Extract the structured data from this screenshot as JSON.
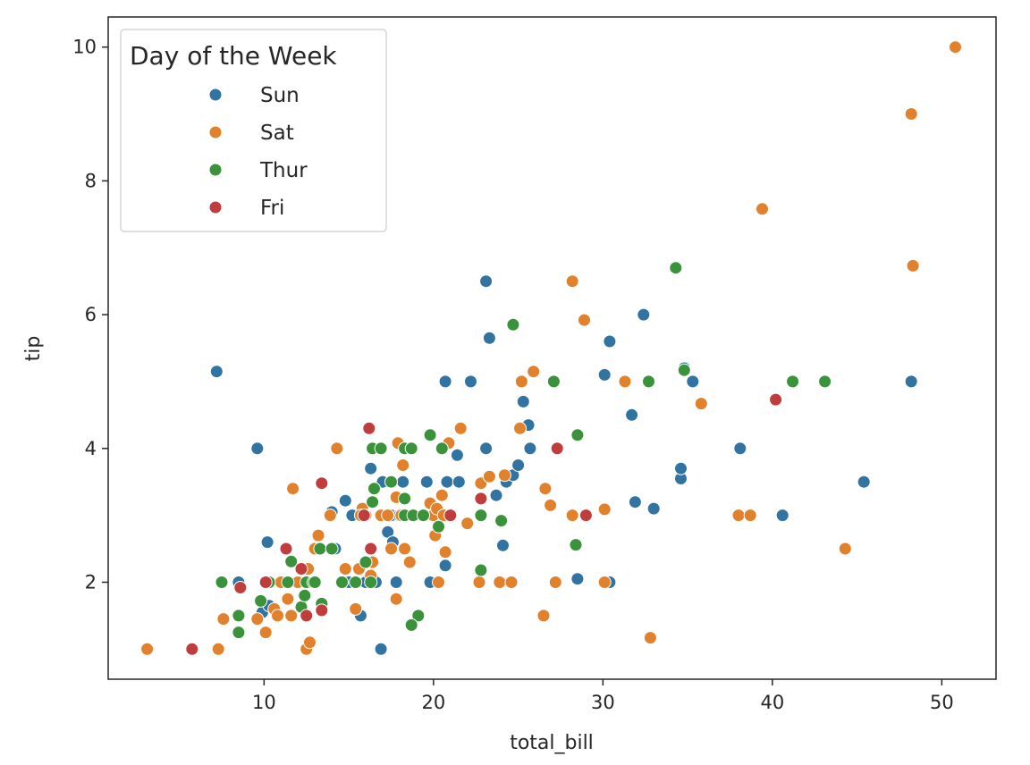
{
  "chart_data": {
    "type": "scatter",
    "title": "",
    "xlabel": "total_bill",
    "ylabel": "tip",
    "xlim": [
      0.8,
      53.2
    ],
    "ylim": [
      0.55,
      10.45
    ],
    "xticks": [
      10,
      20,
      30,
      40,
      50
    ],
    "yticks": [
      2,
      4,
      6,
      8,
      10
    ],
    "grid": false,
    "legend": {
      "title": "Day of the Week",
      "placement": "top-left"
    },
    "series": [
      {
        "name": "Sun",
        "color": "#3274a1",
        "points": [
          [
            7.2,
            5.15
          ],
          [
            9.6,
            4.0
          ],
          [
            10.2,
            2.6
          ],
          [
            8.5,
            2.0
          ],
          [
            9.9,
            1.55
          ],
          [
            10.3,
            1.65
          ],
          [
            14.2,
            2.5
          ],
          [
            14.8,
            3.22
          ],
          [
            15.2,
            3.0
          ],
          [
            14.0,
            3.05
          ],
          [
            16.3,
            3.7
          ],
          [
            16.6,
            2.0
          ],
          [
            15.7,
            1.5
          ],
          [
            15.0,
            2.0
          ],
          [
            16.0,
            2.0
          ],
          [
            17.0,
            3.5
          ],
          [
            17.3,
            2.75
          ],
          [
            17.5,
            3.0
          ],
          [
            17.6,
            2.6
          ],
          [
            18.0,
            3.0
          ],
          [
            18.2,
            3.5
          ],
          [
            19.6,
            3.5
          ],
          [
            20.7,
            5.0
          ],
          [
            20.8,
            3.5
          ],
          [
            21.5,
            3.5
          ],
          [
            21.0,
            3.0
          ],
          [
            21.4,
            3.9
          ],
          [
            20.7,
            2.25
          ],
          [
            19.8,
            2.0
          ],
          [
            22.2,
            5.0
          ],
          [
            23.1,
            6.5
          ],
          [
            23.3,
            5.65
          ],
          [
            23.1,
            4.0
          ],
          [
            23.7,
            3.3
          ],
          [
            24.3,
            3.5
          ],
          [
            24.7,
            3.6
          ],
          [
            25.0,
            3.75
          ],
          [
            25.3,
            4.7
          ],
          [
            25.6,
            4.35
          ],
          [
            25.7,
            4.0
          ],
          [
            24.1,
            2.55
          ],
          [
            24.6,
            2.0
          ],
          [
            16.9,
            1.0
          ],
          [
            17.8,
            2.0
          ],
          [
            30.1,
            5.1
          ],
          [
            30.4,
            5.6
          ],
          [
            32.4,
            6.0
          ],
          [
            31.7,
            4.5
          ],
          [
            31.9,
            3.2
          ],
          [
            33.0,
            3.1
          ],
          [
            34.6,
            3.55
          ],
          [
            34.6,
            3.7
          ],
          [
            34.8,
            5.2
          ],
          [
            35.3,
            5.0
          ],
          [
            28.5,
            2.05
          ],
          [
            30.4,
            2.0
          ],
          [
            38.1,
            4.0
          ],
          [
            40.6,
            3.0
          ],
          [
            45.4,
            3.5
          ],
          [
            48.2,
            5.0
          ]
        ]
      },
      {
        "name": "Sat",
        "color": "#e1812c",
        "points": [
          [
            3.1,
            1.0
          ],
          [
            7.3,
            1.0
          ],
          [
            7.6,
            1.45
          ],
          [
            9.6,
            1.45
          ],
          [
            10.1,
            1.25
          ],
          [
            10.6,
            1.6
          ],
          [
            10.8,
            1.5
          ],
          [
            11.4,
            1.75
          ],
          [
            11.6,
            1.5
          ],
          [
            12.5,
            1.0
          ],
          [
            12.7,
            1.1
          ],
          [
            11.7,
            3.4
          ],
          [
            11.0,
            2.0
          ],
          [
            12.0,
            2.0
          ],
          [
            12.6,
            2.2
          ],
          [
            13.0,
            2.5
          ],
          [
            13.2,
            2.7
          ],
          [
            13.9,
            3.0
          ],
          [
            14.3,
            4.0
          ],
          [
            14.8,
            2.2
          ],
          [
            15.4,
            1.6
          ],
          [
            15.6,
            2.2
          ],
          [
            15.8,
            3.1
          ],
          [
            15.7,
            3.0
          ],
          [
            16.0,
            3.0
          ],
          [
            16.3,
            2.1
          ],
          [
            16.4,
            2.3
          ],
          [
            16.9,
            3.0
          ],
          [
            17.3,
            3.0
          ],
          [
            17.5,
            2.5
          ],
          [
            17.8,
            3.27
          ],
          [
            17.9,
            4.08
          ],
          [
            18.1,
            3.0
          ],
          [
            18.2,
            3.75
          ],
          [
            18.3,
            2.5
          ],
          [
            18.6,
            2.3
          ],
          [
            17.8,
            1.75
          ],
          [
            19.8,
            3.18
          ],
          [
            20.0,
            3.0
          ],
          [
            20.1,
            2.7
          ],
          [
            20.2,
            3.1
          ],
          [
            20.3,
            2.0
          ],
          [
            20.5,
            3.3
          ],
          [
            20.6,
            3.0
          ],
          [
            20.7,
            2.45
          ],
          [
            20.9,
            4.08
          ],
          [
            21.6,
            4.3
          ],
          [
            22.0,
            2.88
          ],
          [
            22.7,
            2.0
          ],
          [
            22.8,
            3.48
          ],
          [
            23.3,
            3.58
          ],
          [
            23.9,
            2.0
          ],
          [
            24.2,
            3.6
          ],
          [
            24.6,
            2.0
          ],
          [
            25.1,
            4.3
          ],
          [
            25.2,
            5.0
          ],
          [
            25.9,
            5.15
          ],
          [
            26.5,
            1.5
          ],
          [
            26.6,
            3.4
          ],
          [
            26.9,
            3.15
          ],
          [
            27.2,
            2.0
          ],
          [
            28.2,
            6.5
          ],
          [
            28.2,
            3.0
          ],
          [
            28.9,
            5.92
          ],
          [
            30.1,
            2.0
          ],
          [
            30.1,
            3.09
          ],
          [
            31.3,
            5.0
          ],
          [
            32.8,
            1.17
          ],
          [
            35.8,
            4.67
          ],
          [
            38.0,
            3.0
          ],
          [
            38.7,
            3.0
          ],
          [
            39.4,
            7.58
          ],
          [
            44.3,
            2.5
          ],
          [
            48.2,
            9.0
          ],
          [
            48.3,
            6.73
          ],
          [
            50.8,
            10.0
          ]
        ]
      },
      {
        "name": "Thur",
        "color": "#3a923a",
        "points": [
          [
            7.5,
            2.0
          ],
          [
            8.5,
            1.5
          ],
          [
            8.5,
            1.25
          ],
          [
            9.8,
            1.72
          ],
          [
            10.3,
            2.0
          ],
          [
            11.4,
            2.0
          ],
          [
            11.6,
            2.31
          ],
          [
            12.2,
            1.63
          ],
          [
            12.4,
            1.8
          ],
          [
            12.5,
            2.0
          ],
          [
            12.9,
            2.0
          ],
          [
            13.0,
            2.0
          ],
          [
            13.3,
            2.5
          ],
          [
            13.4,
            1.68
          ],
          [
            14.0,
            2.5
          ],
          [
            14.6,
            2.0
          ],
          [
            15.4,
            2.0
          ],
          [
            16.0,
            2.3
          ],
          [
            16.3,
            2.0
          ],
          [
            16.4,
            3.2
          ],
          [
            16.5,
            3.4
          ],
          [
            16.4,
            4.0
          ],
          [
            16.9,
            4.0
          ],
          [
            17.5,
            3.5
          ],
          [
            18.3,
            4.0
          ],
          [
            18.7,
            4.0
          ],
          [
            18.3,
            3.0
          ],
          [
            18.8,
            3.0
          ],
          [
            18.3,
            3.25
          ],
          [
            19.1,
            1.5
          ],
          [
            18.7,
            1.36
          ],
          [
            19.4,
            3.0
          ],
          [
            19.8,
            4.2
          ],
          [
            20.3,
            2.83
          ],
          [
            20.5,
            4.0
          ],
          [
            21.0,
            3.0
          ],
          [
            22.8,
            3.0
          ],
          [
            22.8,
            2.18
          ],
          [
            24.0,
            2.92
          ],
          [
            24.7,
            5.85
          ],
          [
            27.1,
            5.0
          ],
          [
            28.4,
            2.56
          ],
          [
            28.5,
            4.2
          ],
          [
            32.7,
            5.0
          ],
          [
            34.3,
            6.7
          ],
          [
            34.8,
            5.17
          ],
          [
            41.2,
            5.0
          ],
          [
            43.1,
            5.0
          ]
        ]
      },
      {
        "name": "Fri",
        "color": "#c03d3e",
        "points": [
          [
            5.75,
            1.0
          ],
          [
            8.6,
            1.92
          ],
          [
            10.1,
            2.0
          ],
          [
            11.3,
            2.5
          ],
          [
            12.2,
            2.2
          ],
          [
            12.5,
            1.5
          ],
          [
            13.4,
            3.48
          ],
          [
            13.4,
            1.58
          ],
          [
            15.9,
            3.0
          ],
          [
            16.2,
            4.3
          ],
          [
            16.3,
            2.5
          ],
          [
            21.0,
            3.0
          ],
          [
            22.8,
            3.25
          ],
          [
            27.3,
            4.0
          ],
          [
            29.0,
            3.0
          ],
          [
            40.2,
            4.73
          ]
        ]
      }
    ]
  }
}
